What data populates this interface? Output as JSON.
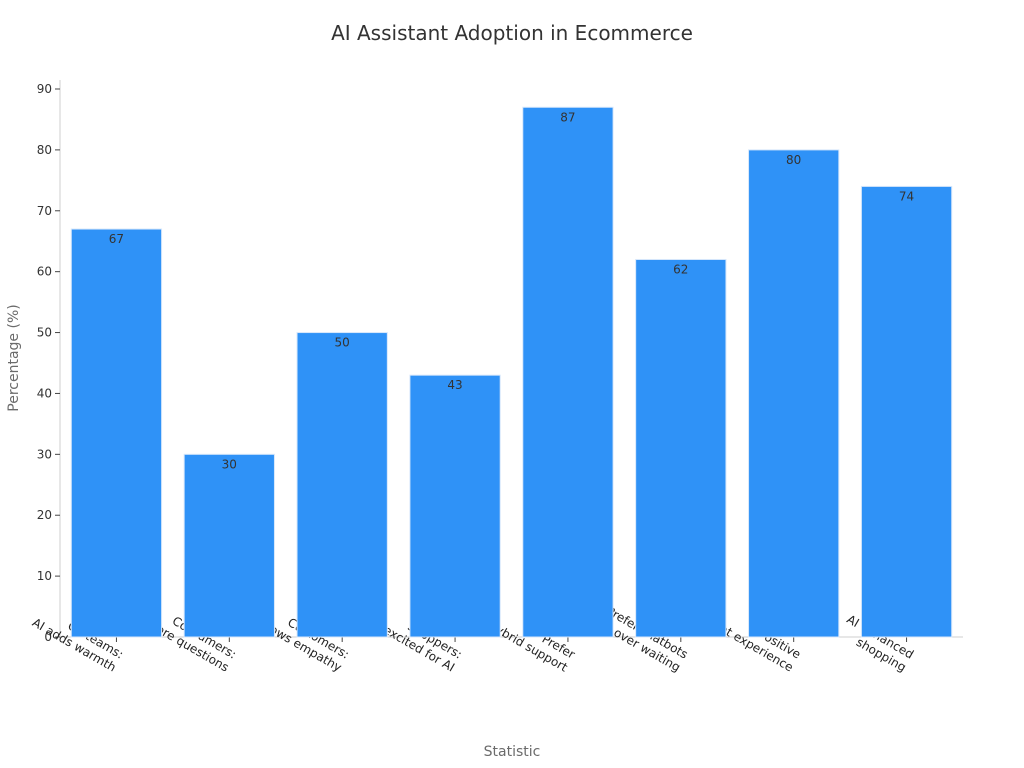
{
  "chart_data": {
    "type": "bar",
    "title": "AI Assistant Adoption in Ecommerce",
    "xlabel": "Statistic",
    "ylabel": "Percentage (%)",
    "ylim": [
      0,
      90
    ],
    "yticks": [
      0,
      10,
      20,
      30,
      40,
      50,
      60,
      70,
      80,
      90
    ],
    "categories": [
      [
        "CX teams:",
        "AI adds warmth"
      ],
      [
        "Consumers:",
        "ask more questions"
      ],
      [
        "Customers:",
        "AI shows empathy"
      ],
      [
        "Shoppers:",
        "excited for AI"
      ],
      [
        "Prefer",
        "hybrid support"
      ],
      [
        "Prefer chatbots",
        "over waiting"
      ],
      [
        "Positive",
        "chatbot experience"
      ],
      [
        "AI enhanced",
        "shopping"
      ]
    ],
    "values": [
      67,
      30,
      50,
      43,
      87,
      62,
      80,
      74
    ],
    "grid": false,
    "bar_color": "#2f92f7",
    "bar_edge_color": "#d7e7fb"
  }
}
